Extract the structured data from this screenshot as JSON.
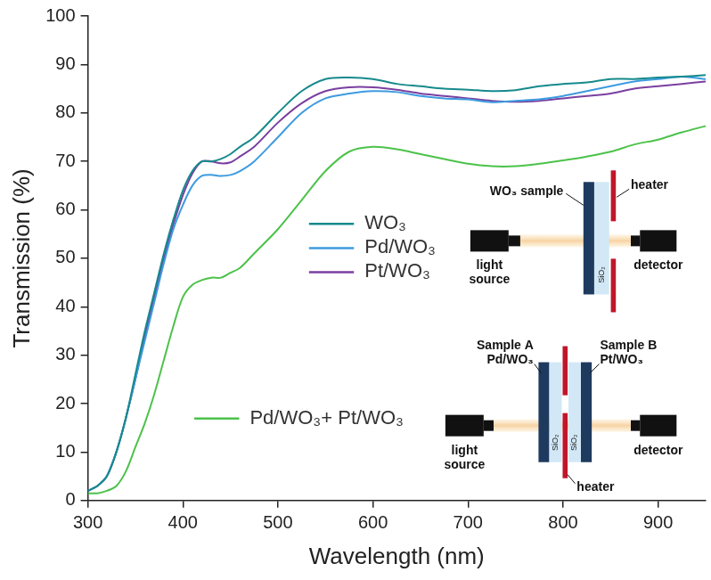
{
  "chart_data": {
    "type": "line",
    "x_label": "Wavelength (nm)",
    "y_label": "Transmission (%)",
    "x": [
      300,
      310,
      320,
      330,
      340,
      350,
      360,
      370,
      380,
      390,
      400,
      410,
      420,
      430,
      440,
      450,
      460,
      475,
      500,
      525,
      550,
      575,
      600,
      625,
      650,
      675,
      700,
      725,
      750,
      775,
      800,
      825,
      850,
      875,
      900,
      925,
      950
    ],
    "series": [
      {
        "name": "WO₃",
        "color": "#168a8c",
        "values": [
          2,
          3,
          5,
          10,
          17,
          26,
          35,
          43,
          51,
          58,
          64,
          68,
          70,
          70,
          70.5,
          71.5,
          73,
          75,
          80,
          84.5,
          87,
          87.3,
          87,
          86,
          85.5,
          85,
          84.8,
          84.5,
          84.7,
          85.5,
          86,
          86.3,
          87,
          87,
          87.3,
          87.5,
          87.8
        ]
      },
      {
        "name": "Pd/WO₃",
        "color": "#3d9be0",
        "values": [
          2,
          3,
          5,
          10,
          17,
          25,
          33,
          41,
          49,
          56,
          61,
          65,
          67,
          67.2,
          67,
          67.2,
          68,
          70,
          75,
          80,
          83,
          84,
          84.5,
          84.3,
          83.5,
          83,
          82.8,
          82.2,
          82.5,
          82.8,
          83.5,
          84.5,
          85.5,
          86.5,
          87,
          87.5,
          87
        ]
      },
      {
        "name": "Pt/WO₃",
        "color": "#7a3fa0",
        "values": [
          2,
          3,
          5,
          10,
          17,
          25,
          34,
          42,
          50,
          57,
          63,
          67.5,
          70,
          70,
          69.6,
          69.8,
          71,
          73,
          78,
          82,
          84.5,
          85.3,
          85.3,
          84.8,
          84,
          83.5,
          83,
          82.5,
          82.3,
          82.5,
          83,
          83.5,
          84,
          85,
          85.5,
          86,
          86.5
        ]
      },
      {
        "name": "Pd/WO₃+ Pt/WO₃",
        "color": "#4cc24a",
        "values": [
          1.5,
          1.5,
          2,
          3,
          6,
          11,
          16,
          22,
          29,
          36,
          42,
          44.5,
          45.5,
          46,
          46,
          47,
          48,
          51,
          56,
          62,
          68,
          72,
          73,
          72.5,
          71.5,
          70.5,
          69.5,
          69,
          69,
          69.5,
          70.2,
          71,
          72,
          73.5,
          74.5,
          76,
          77.3
        ]
      }
    ],
    "xlim": [
      300,
      950
    ],
    "xticks": [
      300,
      400,
      500,
      600,
      700,
      800,
      900
    ],
    "ylim": [
      0,
      100
    ],
    "yticks": [
      0,
      10,
      20,
      30,
      40,
      50,
      60,
      70,
      80,
      90,
      100
    ],
    "grid": false,
    "legend": "left",
    "annotations": {
      "setup_single": {
        "sample": "WO₃ sample",
        "heater": "heater",
        "light_source": "light source",
        "detector": "detector",
        "window": "SiO₂"
      },
      "setup_double": {
        "sample_a": [
          "Sample A",
          "Pd/WO₃"
        ],
        "sample_b": [
          "Sample B",
          "Pt/WO₃"
        ],
        "windows": [
          "SiO₂",
          "SiO₂"
        ],
        "heater": "heater",
        "light_source": "light source",
        "detector": "detector"
      }
    }
  }
}
